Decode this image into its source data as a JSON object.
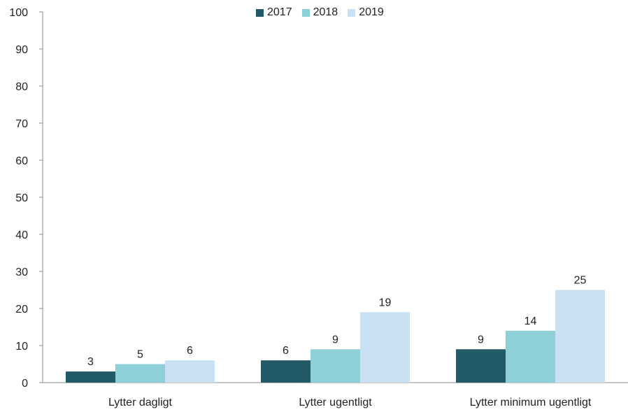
{
  "chart_data": {
    "type": "bar",
    "categories": [
      "Lytter dagligt",
      "Lytter ugentligt",
      "Lytter minimum ugentligt"
    ],
    "series": [
      {
        "name": "2017",
        "values": [
          3,
          6,
          9
        ],
        "color": "#235a68"
      },
      {
        "name": "2018",
        "values": [
          5,
          9,
          14
        ],
        "color": "#8ecfd8"
      },
      {
        "name": "2019",
        "values": [
          6,
          19,
          25
        ],
        "color": "#c9e1f2"
      }
    ],
    "data_labels": [
      [
        "3",
        "5",
        "6"
      ],
      [
        "6",
        "9",
        "19"
      ],
      [
        "9",
        "14",
        "25"
      ]
    ],
    "ylim": [
      0,
      100
    ],
    "yticks": [
      "0",
      "10",
      "20",
      "30",
      "40",
      "50",
      "60",
      "70",
      "80",
      "90",
      "100"
    ],
    "legend_position": "top-center",
    "grid": false
  }
}
